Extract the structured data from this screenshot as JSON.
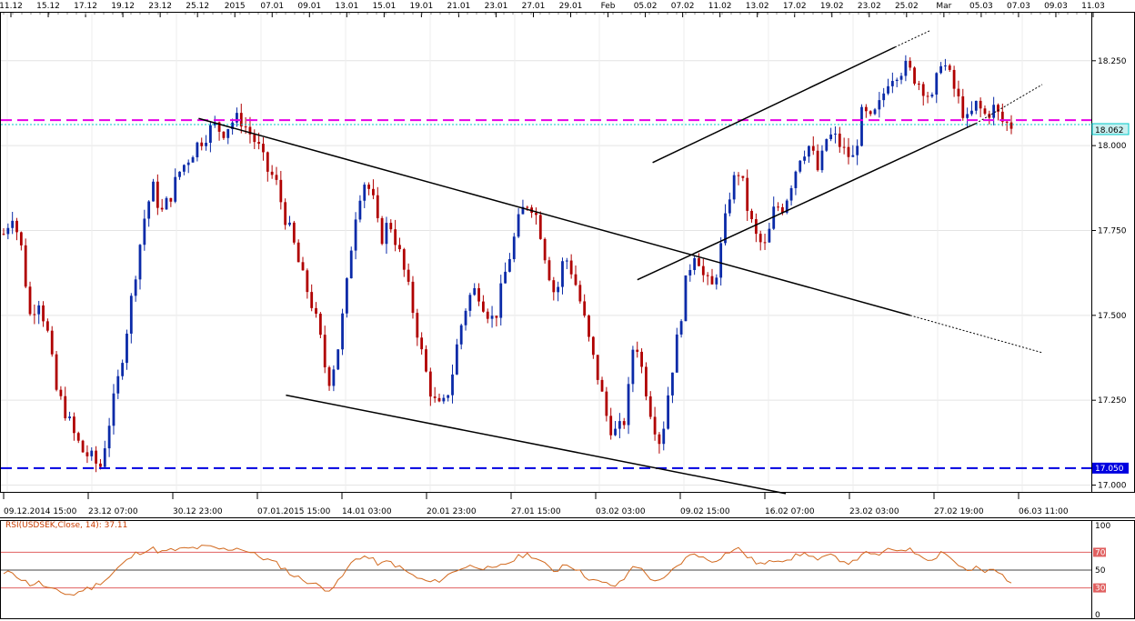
{
  "chart_data": {
    "type": "candlestick",
    "main": {
      "ylim": [
        16.98,
        18.37
      ],
      "y_ticks": [
        17.0,
        17.25,
        17.5,
        17.75,
        18.0,
        18.25
      ],
      "y_tick_labels": [
        "17.000",
        "17.250",
        "17.500",
        "17.750",
        "18.000",
        "18.250"
      ],
      "top_date_labels": [
        "11.12",
        "15.12",
        "17.12",
        "19.12",
        "23.12",
        "25.12",
        "2015",
        "07.01",
        "09.01",
        "13.01",
        "15.01",
        "19.01",
        "21.01",
        "23.01",
        "27.01",
        "29.01",
        "Feb",
        "05.02",
        "07.02",
        "11.02",
        "13.02",
        "17.02",
        "19.02",
        "23.02",
        "25.02",
        "Mar",
        "05.03",
        "07.03",
        "09.03",
        "11.03"
      ],
      "bottom_time_labels": [
        "09.12.2014 15:00",
        "23.12 07:00",
        "30.12 23:00",
        "07.01.2015 15:00",
        "14.01 03:00",
        "20.01 23:00",
        "27.01 15:00",
        "03.02 03:00",
        "09.02 15:00",
        "16.02 07:00",
        "23.02 03:00",
        "27.02 19:00",
        "06.03 11:00"
      ],
      "price_path": [
        17.74,
        17.8,
        17.7,
        17.5,
        17.55,
        17.45,
        17.28,
        17.22,
        17.15,
        17.1,
        17.08,
        17.05,
        17.18,
        17.3,
        17.45,
        17.62,
        17.78,
        17.88,
        17.8,
        17.85,
        17.92,
        17.96,
        18.0,
        18.03,
        18.06,
        18.04,
        18.07,
        18.08,
        18.04,
        18.0,
        17.93,
        17.9,
        17.8,
        17.72,
        17.62,
        17.55,
        17.45,
        17.3,
        17.38,
        17.55,
        17.78,
        17.9,
        17.86,
        17.72,
        17.78,
        17.7,
        17.6,
        17.48,
        17.35,
        17.25,
        17.22,
        17.3,
        17.45,
        17.55,
        17.58,
        17.52,
        17.48,
        17.6,
        17.7,
        17.8,
        17.84,
        17.78,
        17.65,
        17.55,
        17.68,
        17.62,
        17.52,
        17.4,
        17.3,
        17.18,
        17.15,
        17.2,
        17.45,
        17.32,
        17.2,
        17.12,
        17.3,
        17.45,
        17.62,
        17.7,
        17.6,
        17.58,
        17.72,
        17.88,
        17.93,
        17.8,
        17.72,
        17.7,
        17.82,
        17.82,
        17.9,
        17.98,
        18.0,
        17.92,
        18.03,
        18.02,
        17.98,
        17.96,
        18.1,
        18.07,
        18.12,
        18.2,
        18.22,
        18.23,
        18.2,
        18.17,
        18.13,
        18.26,
        18.2,
        18.13,
        18.07,
        18.12,
        18.09,
        18.11,
        18.07,
        18.06
      ],
      "price_label": "18.062",
      "levels": [
        {
          "name": "magenta-level",
          "value": 18.075,
          "color": "#e600e6",
          "style": "dashed"
        },
        {
          "name": "cyan-level",
          "value": 18.062,
          "color": "#00c8c8",
          "style": "dotted"
        },
        {
          "name": "blue-level",
          "value": 17.05,
          "color": "#0000e0",
          "style": "dashed",
          "label": "17.050"
        }
      ],
      "trendlines": [
        {
          "name": "upper-falling-line",
          "from": [
            0.182,
            18.08
          ],
          "to": [
            0.834,
            17.5
          ],
          "extend_to": [
            0.955,
            17.39
          ]
        },
        {
          "name": "lower-falling-line",
          "from": [
            0.262,
            17.265
          ],
          "to": [
            0.72,
            16.975
          ]
        },
        {
          "name": "channel-upper-line",
          "from": [
            0.598,
            17.95
          ],
          "to": [
            0.82,
            18.29
          ],
          "extend_to": [
            0.853,
            18.34
          ]
        },
        {
          "name": "channel-lower-line",
          "from": [
            0.584,
            17.605
          ],
          "to": [
            0.894,
            18.065
          ],
          "extend_to": [
            0.955,
            18.18
          ]
        }
      ]
    },
    "rsi": {
      "title": "RSI(USDSEK,Close, 14): 37.11",
      "ylim": [
        0,
        100
      ],
      "levels": [
        70,
        50,
        30
      ],
      "tick_labels": [
        "100",
        "70",
        "50",
        "30",
        "0"
      ],
      "values": [
        45,
        48,
        40,
        34,
        36,
        30,
        26,
        24,
        22,
        28,
        30,
        36,
        42,
        52,
        60,
        68,
        72,
        74,
        70,
        72,
        73,
        74,
        75,
        76,
        75,
        73,
        74,
        75,
        70,
        66,
        62,
        58,
        52,
        44,
        40,
        36,
        32,
        28,
        34,
        48,
        62,
        66,
        62,
        56,
        60,
        54,
        48,
        42,
        38,
        36,
        40,
        46,
        52,
        54,
        55,
        52,
        50,
        56,
        60,
        66,
        68,
        62,
        54,
        48,
        58,
        54,
        46,
        40,
        36,
        34,
        32,
        42,
        58,
        48,
        40,
        36,
        46,
        56,
        64,
        70,
        62,
        60,
        66,
        72,
        74,
        64,
        58,
        56,
        62,
        62,
        64,
        68,
        68,
        60,
        66,
        64,
        60,
        58,
        70,
        66,
        68,
        72,
        73,
        74,
        70,
        66,
        60,
        72,
        64,
        56,
        48,
        52,
        48,
        50,
        44,
        37
      ]
    }
  }
}
